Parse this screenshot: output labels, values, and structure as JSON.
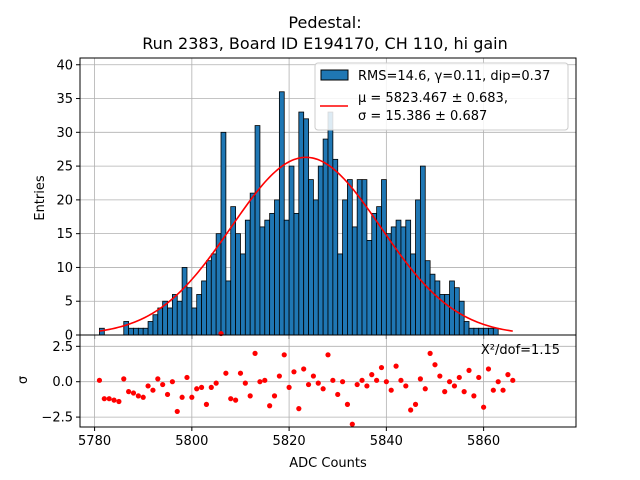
{
  "chart_data": {
    "type": "histogram",
    "title_line1": "Pedestal:",
    "title_line2": "Run 2383, Board ID E194170, CH 110, hi gain",
    "top_panel": {
      "ylabel": "Entries",
      "xlim": [
        5777,
        5879
      ],
      "ylim": [
        0,
        41
      ],
      "yticks": [
        0,
        5,
        10,
        15,
        20,
        25,
        30,
        35,
        40
      ],
      "bin_start": 5781,
      "bin_width": 1,
      "counts": [
        1,
        0,
        0,
        0,
        0,
        2,
        1,
        1,
        1,
        1,
        2,
        3,
        4,
        5,
        4,
        6,
        5,
        10,
        7,
        4,
        6,
        8,
        11,
        12,
        15,
        30,
        8,
        19,
        15,
        12,
        17,
        21,
        31,
        16,
        17,
        18,
        20,
        36,
        17,
        25,
        18,
        33,
        32,
        23,
        20,
        25,
        29,
        33,
        26,
        12,
        20,
        23,
        16,
        23,
        23,
        14,
        18,
        19,
        23,
        15,
        16,
        17,
        16,
        17,
        12,
        20,
        25,
        11,
        9,
        8,
        6,
        6,
        8,
        7,
        5,
        2,
        1,
        1,
        1,
        1,
        1,
        1
      ],
      "bar_color": "#1f77b4",
      "fit_mu": 5823.467,
      "fit_sigma": 15.386,
      "fit_amplitude": 26.3,
      "fit_range": [
        5781,
        5866
      ],
      "fit_color": "#ff0000",
      "legend": {
        "position": "top-right",
        "hist_label": "RMS=14.6, γ=0.11, dip=0.37",
        "fit_label_line1": "μ = 5823.467 ± 0.683,",
        "fit_label_line2": "σ = 15.386 ± 0.687"
      }
    },
    "bottom_panel": {
      "ylabel": "σ",
      "xlabel": "ADC Counts",
      "ylim": [
        -3.2,
        3.3
      ],
      "yticks": [
        -2.5,
        0.0,
        2.5
      ],
      "ytick_labels": [
        "−2.5",
        "0.0",
        "2.5"
      ],
      "chi2_label": "X²/dof=1.15",
      "marker_color": "#ff0000",
      "residuals_x": [
        5781,
        5782,
        5783,
        5784,
        5785,
        5786,
        5787,
        5788,
        5789,
        5790,
        5791,
        5792,
        5793,
        5794,
        5795,
        5796,
        5797,
        5798,
        5799,
        5800,
        5801,
        5802,
        5803,
        5804,
        5805,
        5806,
        5807,
        5808,
        5809,
        5810,
        5811,
        5812,
        5813,
        5814,
        5815,
        5816,
        5817,
        5818,
        5819,
        5820,
        5821,
        5822,
        5823,
        5824,
        5825,
        5826,
        5827,
        5828,
        5829,
        5830,
        5831,
        5832,
        5833,
        5834,
        5835,
        5836,
        5837,
        5838,
        5839,
        5840,
        5841,
        5842,
        5843,
        5844,
        5845,
        5846,
        5847,
        5848,
        5849,
        5850,
        5851,
        5852,
        5853,
        5854,
        5855,
        5856,
        5857,
        5858,
        5859,
        5860,
        5861,
        5862,
        5863,
        5864,
        5865,
        5866
      ],
      "residuals": [
        0.1,
        -1.2,
        -1.2,
        -1.3,
        -1.4,
        0.2,
        -0.7,
        -0.8,
        -1.0,
        -1.1,
        -0.3,
        -0.6,
        0.2,
        -0.2,
        -0.9,
        0.0,
        -2.1,
        -1.1,
        0.3,
        -1.1,
        -0.5,
        -0.4,
        -1.6,
        -0.4,
        -0.1,
        3.4,
        0.6,
        -1.2,
        -1.3,
        0.6,
        -0.1,
        -1.0,
        2.0,
        0.0,
        0.1,
        -1.7,
        -1.0,
        0.4,
        1.9,
        -0.4,
        0.7,
        -1.9,
        0.9,
        -0.2,
        0.4,
        -0.1,
        -0.5,
        1.9,
        0.1,
        -0.9,
        0.0,
        -1.6,
        -3.0,
        -0.2,
        0.1,
        -0.3,
        0.5,
        0.1,
        1.0,
        0.0,
        -0.6,
        1.1,
        0.1,
        -0.3,
        -2.0,
        -1.6,
        0.2,
        -0.5,
        2.0,
        1.2,
        0.4,
        -0.7,
        0.0,
        -0.3,
        0.3,
        -0.7,
        0.8,
        -1.0,
        0.3,
        -1.8,
        0.9,
        -0.6,
        0.0,
        -0.6,
        0.5,
        0.1
      ]
    },
    "xticks": [
      5780,
      5800,
      5820,
      5840,
      5860
    ],
    "grid": true
  }
}
